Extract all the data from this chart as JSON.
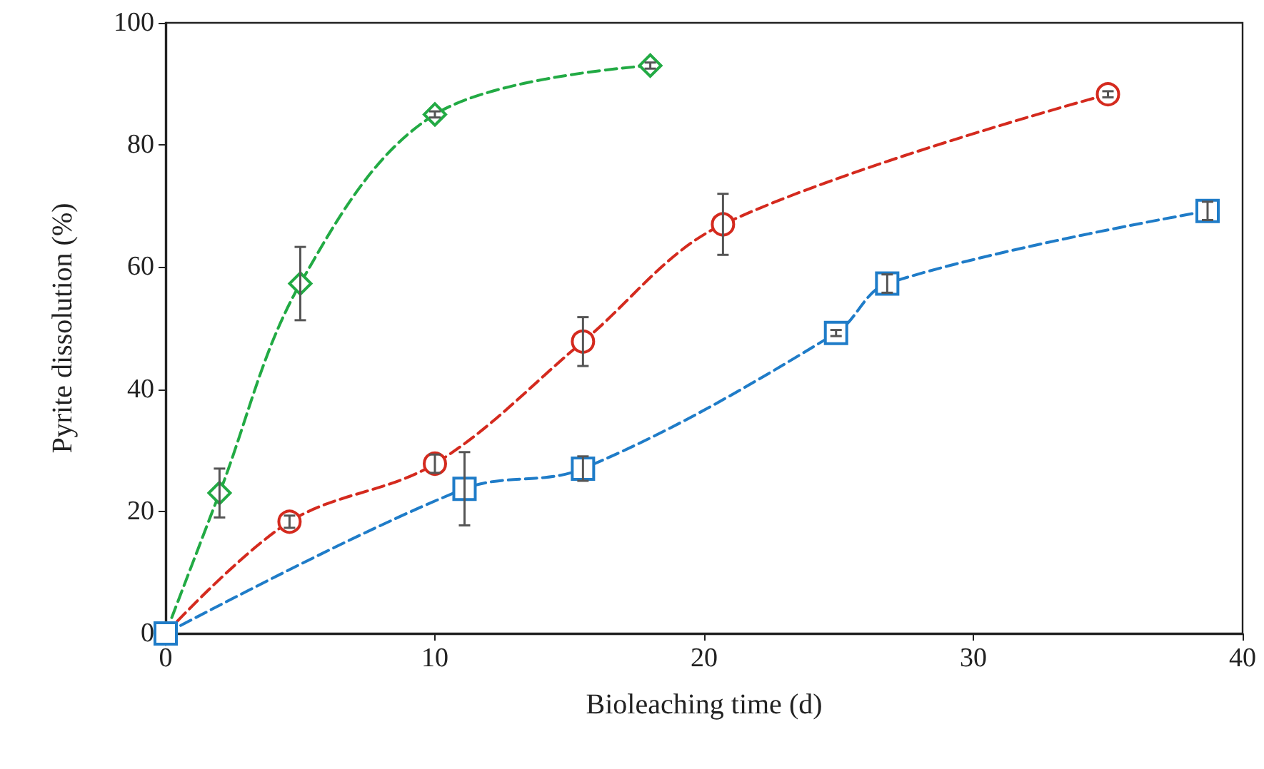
{
  "chart_data": {
    "type": "line",
    "xlabel": "Bioleaching time (d)",
    "ylabel": "Pyrite dissolution (%)",
    "xlim": [
      0,
      40
    ],
    "xticks": [
      0,
      10,
      20,
      30,
      40
    ],
    "ylim": [
      0,
      100
    ],
    "yticks": [
      0,
      20,
      40,
      60,
      80,
      100
    ],
    "grid": false,
    "line_style": "dashed",
    "series": [
      {
        "color": "#22aa44",
        "marker": "diamond",
        "x": [
          0,
          2,
          5,
          10,
          18
        ],
        "values": [
          0,
          23,
          57.3,
          85,
          93
        ],
        "errors": [
          null,
          4,
          6,
          0.5,
          0.5
        ]
      },
      {
        "color": "#d42a1e",
        "marker": "circle",
        "x": [
          0,
          4.6,
          10,
          15.5,
          20.7,
          35
        ],
        "values": [
          0,
          18.3,
          27.8,
          47.8,
          67,
          88.3
        ],
        "errors": [
          null,
          1,
          1.5,
          4,
          5,
          0.5
        ]
      },
      {
        "color": "#1f7cc8",
        "marker": "square",
        "x": [
          0,
          11.1,
          15.5,
          24.9,
          26.8,
          38.7
        ],
        "values": [
          0,
          23.7,
          27,
          49.2,
          57.3,
          69.2
        ],
        "errors": [
          null,
          6,
          2,
          0.5,
          1.5,
          1.5
        ]
      }
    ]
  }
}
